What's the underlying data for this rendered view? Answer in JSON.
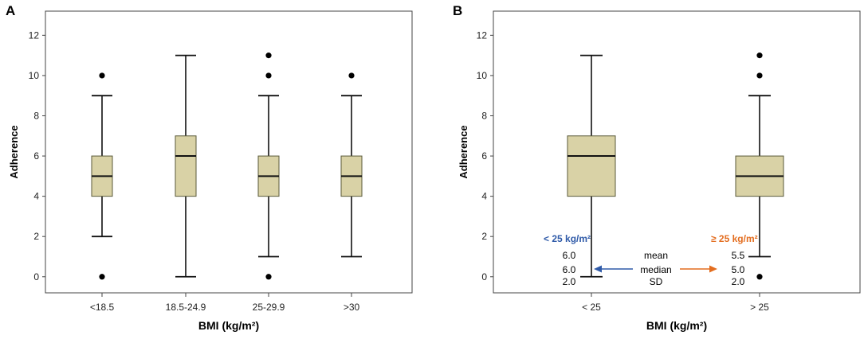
{
  "box_fill": "#d9d2a6",
  "box_stroke": "#5a5a3a",
  "low_color": "#2f5aa8",
  "high_color": "#e36d1f",
  "chart_data": [
    {
      "type": "boxplot",
      "panel_label": "A",
      "xlabel": "BMI (kg/m²)",
      "ylabel": "Adherence",
      "ylim": [
        -0.8,
        13.2
      ],
      "yticks": [
        0,
        2,
        4,
        6,
        8,
        10,
        12
      ],
      "ytick_labels": [
        "0",
        "2",
        "4",
        "6",
        "8",
        "10",
        "12"
      ],
      "categories": [
        "<18.5",
        "18.5-24.9",
        "25-29.9",
        ">30"
      ],
      "boxes": [
        {
          "whisker_low": 2,
          "q1": 4,
          "median": 5,
          "q3": 6,
          "whisker_high": 9,
          "outliers": [
            0,
            10
          ]
        },
        {
          "whisker_low": 0,
          "q1": 4,
          "median": 6,
          "q3": 7,
          "whisker_high": 11,
          "outliers": []
        },
        {
          "whisker_low": 1,
          "q1": 4,
          "median": 5,
          "q3": 6,
          "whisker_high": 9,
          "outliers": [
            0,
            10,
            11
          ]
        },
        {
          "whisker_low": 1,
          "q1": 4,
          "median": 5,
          "q3": 6,
          "whisker_high": 9,
          "outliers": [
            10
          ]
        }
      ]
    },
    {
      "type": "boxplot",
      "panel_label": "B",
      "xlabel": "BMI (kg/m²)",
      "ylabel": "Adherence",
      "ylim": [
        -0.8,
        13.2
      ],
      "yticks": [
        0,
        2,
        4,
        6,
        8,
        10,
        12
      ],
      "ytick_labels": [
        "0",
        "2",
        "4",
        "6",
        "8",
        "10",
        "12"
      ],
      "categories": [
        "< 25",
        "> 25"
      ],
      "boxes": [
        {
          "whisker_low": 0,
          "q1": 4,
          "median": 6,
          "q3": 7,
          "whisker_high": 11,
          "outliers": []
        },
        {
          "whisker_low": 1,
          "q1": 4,
          "median": 5,
          "q3": 6,
          "whisker_high": 9,
          "outliers": [
            0,
            10,
            11
          ]
        }
      ],
      "annotations": {
        "low_group_label": "< 25 kg/m²",
        "high_group_label": "≥ 25 kg/m²",
        "stat_labels": [
          "mean",
          "median",
          "SD"
        ],
        "low_values": [
          "6.0",
          "6.0",
          "2.0"
        ],
        "high_values": [
          "5.5",
          "5.0",
          "2.0"
        ]
      }
    }
  ]
}
